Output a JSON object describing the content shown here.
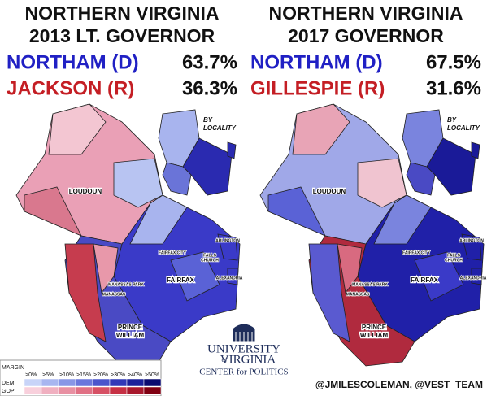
{
  "panels": [
    {
      "title": [
        "NORTHERN VIRGINIA",
        "2013 LT. GOVERNOR"
      ],
      "candidates": [
        {
          "name": "NORTHAM (D)",
          "pct": "63.7%"
        },
        {
          "name": "JACKSON (R)",
          "pct": "36.3%"
        }
      ],
      "inset_label": [
        "BY",
        "LOCALITY"
      ],
      "map_labels": {
        "loudoun": "LOUDOUN",
        "fairfax": "FAIRFAX",
        "prince_william": [
          "PRINCE",
          "WILLIAM"
        ],
        "arlington": "ARLINGTON",
        "falls_church": [
          "FALLS",
          "CHURCH"
        ],
        "alexandria": "ALEXANDRIA",
        "fairfax_city": "FAIRFAX CITY",
        "manassas_park": "MANASSAS PARK",
        "manassas": "MANASSAS"
      }
    },
    {
      "title": [
        "NORTHERN VIRGINIA",
        "2017 GOVERNOR"
      ],
      "candidates": [
        {
          "name": "NORTHAM (D)",
          "pct": "67.5%"
        },
        {
          "name": "GILLESPIE (R)",
          "pct": "31.6%"
        }
      ],
      "inset_label": [
        "BY",
        "LOCALITY"
      ],
      "map_labels": {
        "loudoun": "LOUDOUN",
        "fairfax": "FAIRFAX",
        "prince_william": [
          "PRINCE",
          "WILLIAM"
        ],
        "arlington": "ARLINGTON",
        "falls_church": [
          "FALLS",
          "CHURCH"
        ],
        "alexandria": "ALEXANDRIA",
        "fairfax_city": "FAIRFAX CITY",
        "manassas_park": "MANASSAS PARK",
        "manassas": "MANASSAS"
      }
    }
  ],
  "legend": {
    "header": "MARGIN",
    "bins": [
      ">0%",
      ">5%",
      ">10%",
      ">15%",
      ">20%",
      ">30%",
      ">40%",
      ">50%"
    ],
    "rows": [
      "DEM",
      "GOP"
    ]
  },
  "logo": [
    "UNIVERSITY",
    "of",
    "VIRGINIA",
    "CENTER for POLITICS"
  ],
  "credit": "@JMILESCOLEMAN, @VEST_TEAM"
}
